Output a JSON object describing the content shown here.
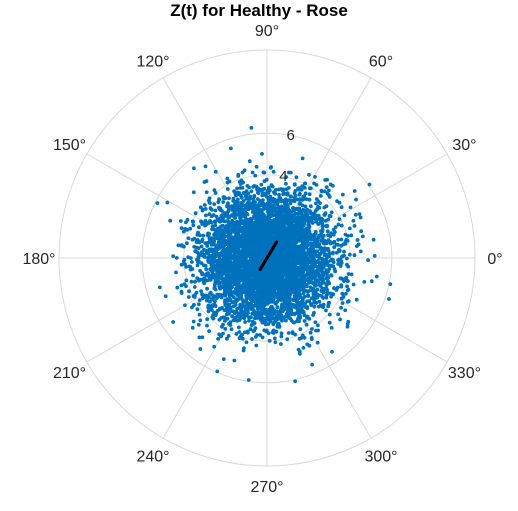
{
  "chart_data": {
    "type": "scatter",
    "projection": "polar",
    "title": "Z(t) for Healthy - Rose",
    "angle_tick_labels": [
      "0°",
      "30°",
      "60°",
      "90°",
      "120°",
      "150°",
      "180°",
      "210°",
      "240°",
      "270°",
      "300°",
      "330°"
    ],
    "angle_ticks_deg": [
      0,
      30,
      60,
      90,
      120,
      150,
      180,
      210,
      240,
      270,
      300,
      330
    ],
    "radial_tick_labels": [
      "2",
      "4",
      "6"
    ],
    "radial_ticks": [
      2,
      4,
      6
    ],
    "radial_labels_shown": [
      "4",
      "6"
    ],
    "rlim": [
      0,
      10
    ],
    "grid": true,
    "series": [
      {
        "kind": "scatter-cloud",
        "point_count_approx": 5000,
        "center_radius": 0,
        "radial_spread_sd": 1.55,
        "max_radius_observed": 6.3,
        "color": "#0072BD"
      },
      {
        "kind": "vector",
        "angle_deg": 59,
        "radius": 0.9,
        "color": "#000000"
      }
    ]
  },
  "colors": {
    "points": "#0072BD",
    "grid": "#d9d9d9",
    "vector": "#000000",
    "text": "#262626"
  }
}
